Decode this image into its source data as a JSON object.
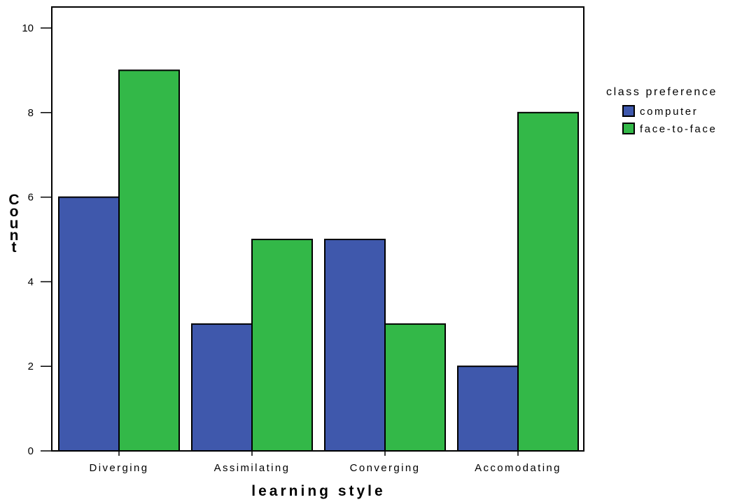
{
  "chart_data": {
    "type": "bar",
    "categories": [
      "Diverging",
      "Assimilating",
      "Converging",
      "Accomodating"
    ],
    "series": [
      {
        "name": "computer",
        "values": [
          6,
          3,
          5,
          2
        ],
        "color": "#3f58ac"
      },
      {
        "name": "face-to-face",
        "values": [
          9,
          5,
          3,
          8
        ],
        "color": "#33b848"
      }
    ],
    "xlabel": "learning style",
    "ylabel": "Count",
    "ylim": [
      0,
      10
    ],
    "yticks": [
      0,
      2,
      4,
      6,
      8,
      10
    ],
    "legend_title": "class preference",
    "legend_position": "right-top",
    "grid": false
  }
}
